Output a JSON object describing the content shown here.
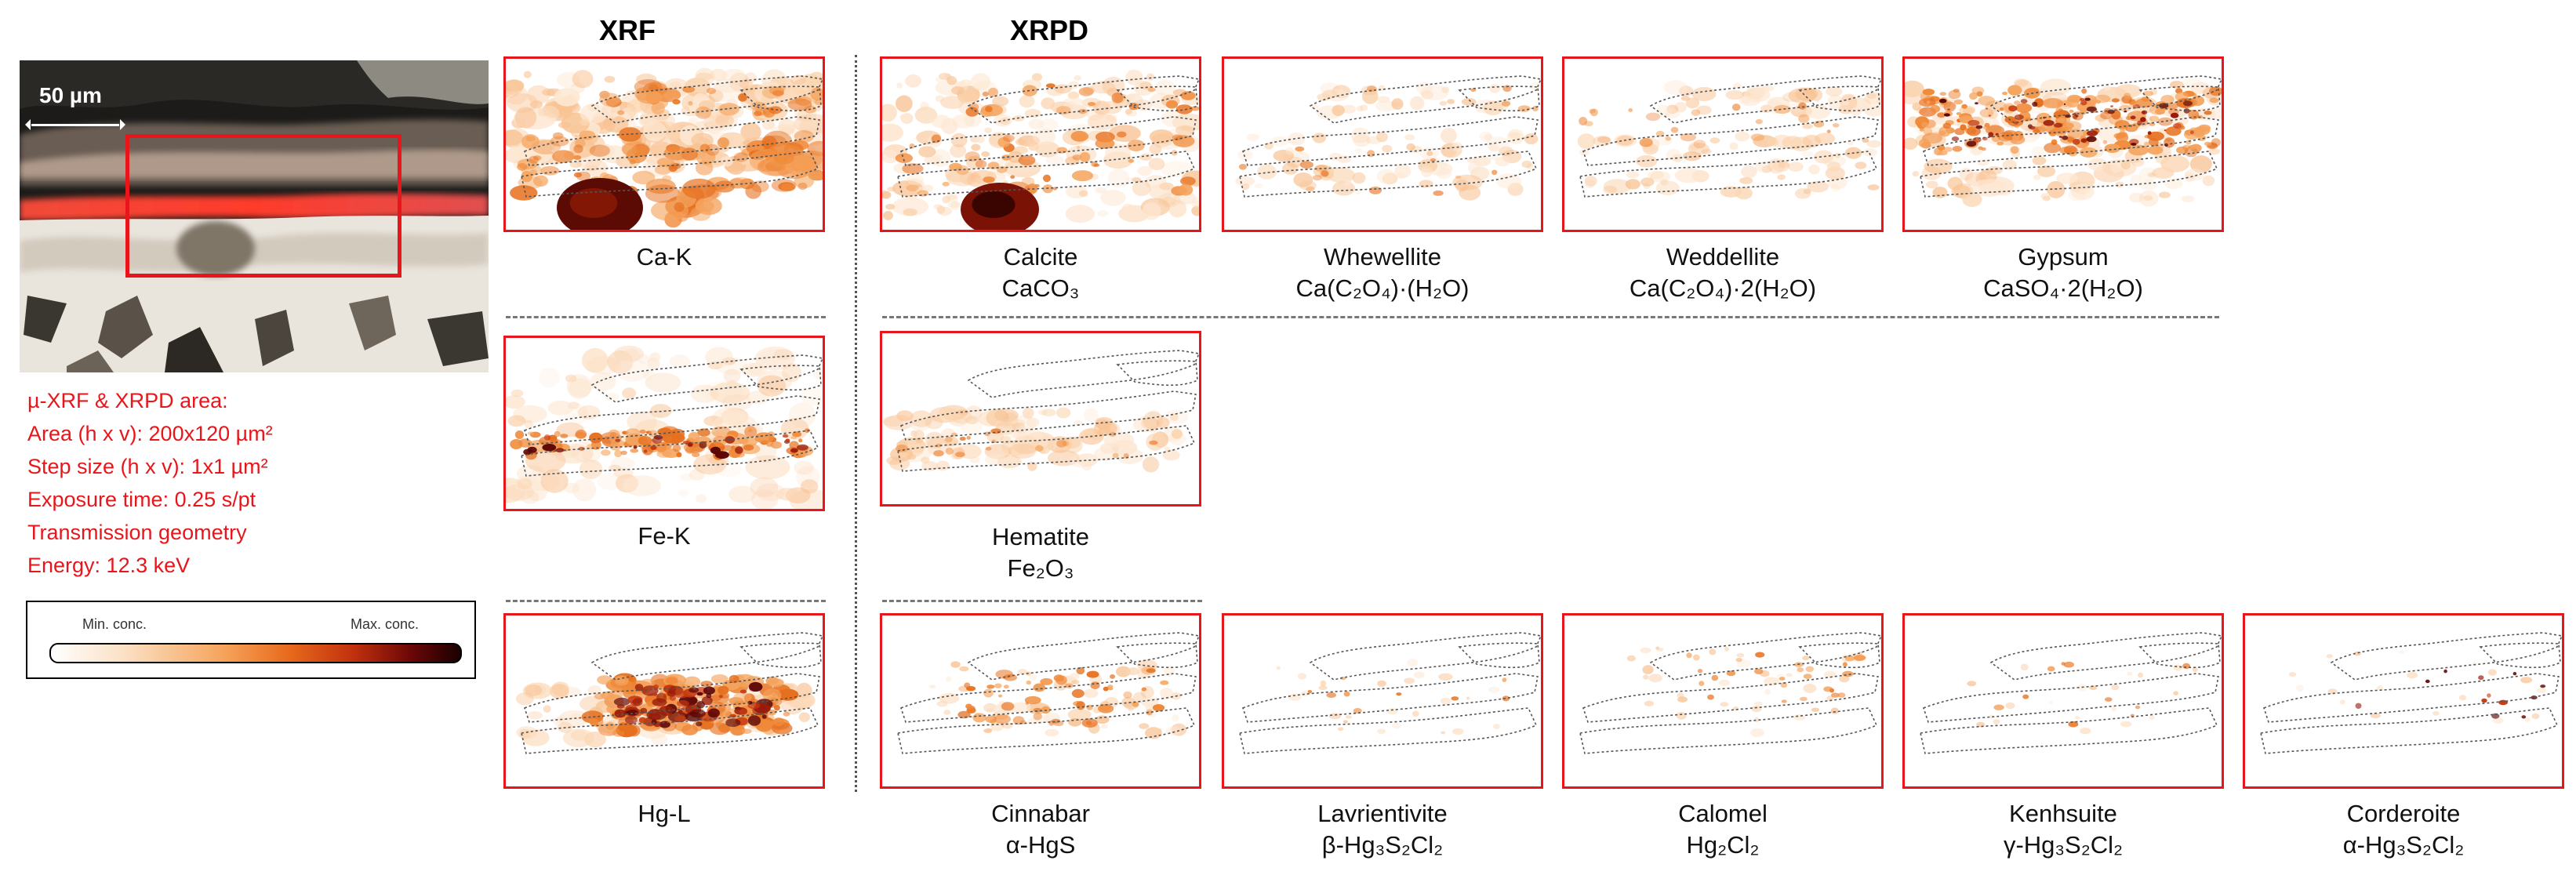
{
  "headers": {
    "xrf": "XRF",
    "xrpd": "XRPD"
  },
  "micrograph": {
    "scale_bar": "50 µm"
  },
  "acquisition_info": [
    "µ-XRF & XRPD area:",
    "Area (h x v): 200x120 µm²",
    "Step size (h x v): 1x1 µm²",
    "Exposure time: 0.25 s/pt",
    "Transmission geometry",
    "Energy: 12.3 keV"
  ],
  "legend": {
    "min": "Min. conc.",
    "max": "Max. conc."
  },
  "colors": {
    "frame_red": "#e8161b",
    "info_red": "#e8161b"
  },
  "xrf_maps": [
    {
      "id": "ca",
      "name": "Ca-K",
      "formula": ""
    },
    {
      "id": "fe",
      "name": "Fe-K",
      "formula": ""
    },
    {
      "id": "hg",
      "name": "Hg-L",
      "formula": ""
    }
  ],
  "xrpd_maps": [
    {
      "id": "calcite",
      "name": "Calcite",
      "formula": "CaCO₃"
    },
    {
      "id": "whewellite",
      "name": "Whewellite",
      "formula": "Ca(C₂O₄)·(H₂O)"
    },
    {
      "id": "weddellite",
      "name": "Weddellite",
      "formula": "Ca(C₂O₄)·2(H₂O)"
    },
    {
      "id": "gypsum",
      "name": "Gypsum",
      "formula": "CaSO₄·2(H₂O)"
    },
    {
      "id": "hematite",
      "name": "Hematite",
      "formula": "Fe₂O₃"
    },
    {
      "id": "cinnabar",
      "name": "Cinnabar",
      "formula": "α-HgS"
    },
    {
      "id": "lavrientivite",
      "name": "Lavrientivite",
      "formula": "β-Hg₃S₂Cl₂"
    },
    {
      "id": "calomel",
      "name": "Calomel",
      "formula": "Hg₂Cl₂"
    },
    {
      "id": "kenhsuite",
      "name": "Kenhsuite",
      "formula": "γ-Hg₃S₂Cl₂"
    },
    {
      "id": "corderoite",
      "name": "Corderoite",
      "formula": "α-Hg₃S₂Cl₂"
    }
  ]
}
